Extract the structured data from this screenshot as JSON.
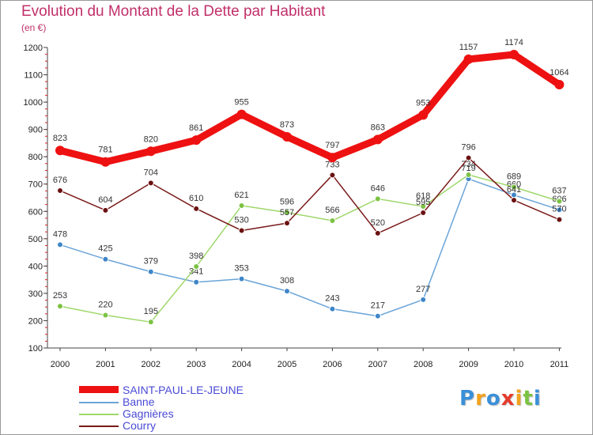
{
  "title": "Evolution du Montant de la Dette par Habitant",
  "unit": "(en €)",
  "logo": {
    "text": "Proxiti",
    "letters": [
      "P",
      "r",
      "o",
      "x",
      "i",
      "t",
      "i"
    ],
    "colors": [
      "#3b8fd8",
      "#f2a21f",
      "#3b8fd8",
      "#e53a2b",
      "#f2a21f",
      "#7cc243",
      "#3b8fd8"
    ]
  },
  "legend": [
    {
      "name": "SAINT-PAUL-LE-JEUNE",
      "color": "#ee1111"
    },
    {
      "name": "Banne",
      "color": "#6aa4d8"
    },
    {
      "name": "Gagnières",
      "color": "#9fd86a"
    },
    {
      "name": "Courry",
      "color": "#7a1a1a"
    }
  ],
  "chart_data": {
    "type": "line",
    "title": "Evolution du Montant de la Dette par Habitant",
    "ylabel": "(en €)",
    "xlabel": "",
    "x": [
      "2000",
      "2001",
      "2002",
      "2003",
      "2004",
      "2005",
      "2006",
      "2007",
      "2008",
      "2009",
      "2010",
      "2011"
    ],
    "ylim": [
      100,
      1200
    ],
    "yticks": [
      "100",
      "200",
      "300",
      "400",
      "500",
      "600",
      "700",
      "800",
      "900",
      "1000",
      "1100",
      "1200"
    ],
    "grid": false,
    "legend_position": "bottom-left",
    "series": [
      {
        "name": "SAINT-PAUL-LE-JEUNE",
        "color": "#ee1111",
        "marker": "#ee1111",
        "values": [
          823,
          781,
          820,
          861,
          955,
          873,
          797,
          863,
          953,
          1157,
          1174,
          1064
        ]
      },
      {
        "name": "Banne",
        "color": "#6aa4d8",
        "marker": "#3f86c9",
        "values": [
          478,
          425,
          379,
          341,
          353,
          308,
          243,
          217,
          277,
          719,
          660,
          606
        ]
      },
      {
        "name": "Gagnières",
        "color": "#9fd86a",
        "marker": "#7cc243",
        "values": [
          253,
          220,
          195,
          398,
          621,
          596,
          566,
          646,
          618,
          734,
          689,
          637
        ]
      },
      {
        "name": "Courry",
        "color": "#7a1a1a",
        "marker": "#6b1111",
        "values": [
          676,
          604,
          704,
          610,
          530,
          557,
          733,
          520,
          595,
          796,
          641,
          570
        ]
      }
    ]
  }
}
